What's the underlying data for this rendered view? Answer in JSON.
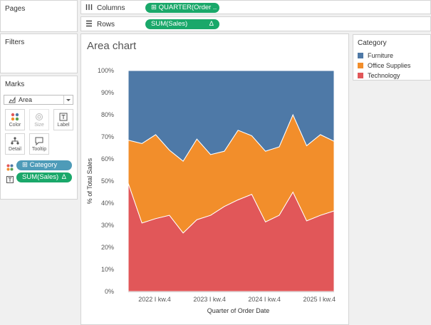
{
  "panels": {
    "pages_title": "Pages",
    "filters_title": "Filters",
    "marks_title": "Marks",
    "legend_title": "Category"
  },
  "shelves": {
    "columns_label": "Columns",
    "columns_pill": "QUARTER(Order ..",
    "rows_label": "Rows",
    "rows_pill": "SUM(Sales)",
    "rows_pill_delta": "Δ"
  },
  "marks": {
    "type": "Area",
    "buttons": [
      "Color",
      "Size",
      "Label",
      "Detail",
      "Tooltip"
    ],
    "fields": [
      {
        "name": "Category",
        "kind": "color"
      },
      {
        "name": "SUM(Sales)",
        "kind": "label",
        "delta": "Δ"
      }
    ]
  },
  "legend": {
    "items": [
      {
        "label": "Furniture",
        "color": "#4e79a7"
      },
      {
        "label": "Office Supplies",
        "color": "#f28e2b"
      },
      {
        "label": "Technology",
        "color": "#e15759"
      }
    ]
  },
  "chart_data": {
    "type": "area",
    "title": "Area chart",
    "xlabel": "Quarter of Order Date",
    "ylabel": "% of Total Sales",
    "ylim": [
      0,
      100
    ],
    "y_ticks": [
      "0%",
      "10%",
      "20%",
      "30%",
      "40%",
      "50%",
      "60%",
      "70%",
      "80%",
      "90%",
      "100%"
    ],
    "x": [
      0,
      1,
      2,
      3,
      4,
      5,
      6,
      7,
      8,
      9,
      10,
      11,
      12,
      13,
      14,
      15
    ],
    "x_tick_labels": [
      {
        "index": 3,
        "label": "2022 I kw.4"
      },
      {
        "index": 7,
        "label": "2023 I kw.4"
      },
      {
        "index": 11,
        "label": "2024 I kw.4"
      },
      {
        "index": 15,
        "label": "2025 I kw.4"
      }
    ],
    "stacked": true,
    "series": [
      {
        "name": "Technology",
        "color": "#e15759",
        "values": [
          49,
          31,
          33,
          34.5,
          26.5,
          32.5,
          34.5,
          38.5,
          41.5,
          44,
          31.5,
          34.5,
          45,
          32,
          34.5,
          36.5
        ]
      },
      {
        "name": "Office Supplies",
        "color": "#f28e2b",
        "values": [
          19.5,
          36,
          38,
          29.5,
          32.5,
          36.5,
          27.5,
          25,
          31.5,
          26.5,
          32,
          31,
          35,
          34,
          36.5,
          31.5
        ]
      },
      {
        "name": "Furniture",
        "color": "#4e79a7",
        "values": [
          31.5,
          33,
          29,
          36,
          41,
          31,
          38,
          36.5,
          27,
          29.5,
          36.5,
          34.5,
          20,
          34,
          29,
          32
        ]
      }
    ]
  }
}
